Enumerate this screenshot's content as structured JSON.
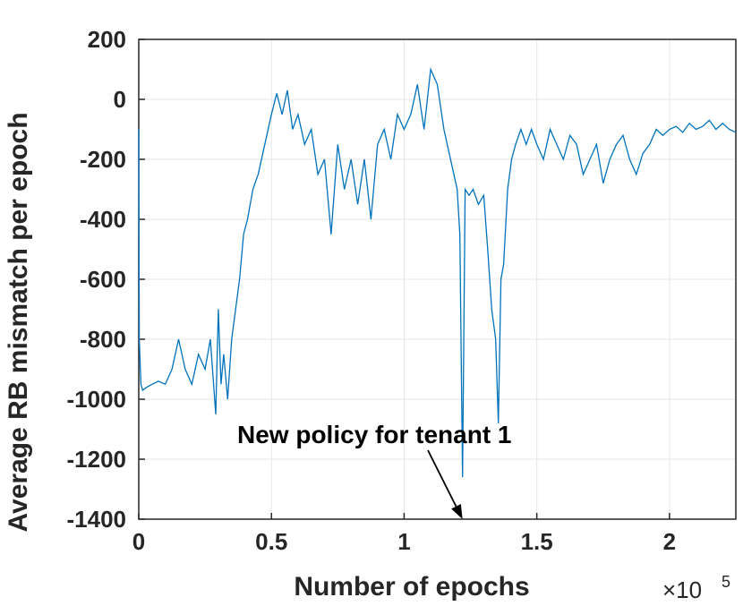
{
  "chart_data": {
    "type": "line",
    "xlabel": "Number of epochs",
    "ylabel": "Average RB mismatch per epoch",
    "xlim": [
      0,
      225000
    ],
    "ylim": [
      -1400,
      200
    ],
    "x_ticks": [
      0,
      50000,
      100000,
      150000,
      200000
    ],
    "x_tick_labels": [
      "0",
      "0.5",
      "1",
      "1.5",
      "2"
    ],
    "x_multiplier": {
      "base": "×10",
      "exponent": "5"
    },
    "y_ticks": [
      200,
      0,
      -200,
      -400,
      -600,
      -800,
      -1000,
      -1200,
      -1400
    ],
    "y_tick_labels": [
      "200",
      "0",
      "-200",
      "-400",
      "-600",
      "-800",
      "-1000",
      "-1200",
      "-1400"
    ],
    "grid": true,
    "line_color": "#0072BD",
    "annotation": {
      "text": "New policy for tenant 1",
      "arrow_to": {
        "x": 122000,
        "y": -1400
      }
    },
    "series": [
      {
        "x": [
          0,
          200,
          800,
          1500,
          3000,
          5000,
          7500,
          10000,
          12500,
          15000,
          17500,
          20000,
          22500,
          25000,
          27000,
          29000,
          30000,
          31000,
          32000,
          33500,
          35000,
          36500,
          38000,
          39500,
          41000,
          43000,
          45000,
          47500,
          50000,
          52000,
          54000,
          56000,
          58000,
          60000,
          62500,
          65000,
          67500,
          70000,
          72500,
          75000,
          77500,
          80000,
          82500,
          85000,
          87500,
          90000,
          92500,
          95000,
          97500,
          100000,
          102500,
          105000,
          107500,
          110000,
          112500,
          115000,
          117500,
          120000,
          121000,
          122000,
          123000,
          124500,
          126000,
          128000,
          130000,
          131500,
          133000,
          134500,
          135500,
          136500,
          137500,
          139000,
          140500,
          142000,
          144000,
          146000,
          148000,
          150000,
          152500,
          155000,
          157500,
          160000,
          162500,
          165000,
          167500,
          170000,
          172500,
          175000,
          177500,
          180000,
          182500,
          185000,
          187500,
          190000,
          192500,
          195000,
          197500,
          200000,
          202500,
          205000,
          207500,
          210000,
          212500,
          215000,
          217500,
          220000,
          222500,
          225000
        ],
        "y": [
          -100,
          -800,
          -950,
          -970,
          -960,
          -950,
          -940,
          -950,
          -900,
          -800,
          -900,
          -950,
          -850,
          -900,
          -800,
          -1050,
          -700,
          -950,
          -850,
          -1000,
          -800,
          -700,
          -600,
          -450,
          -400,
          -300,
          -250,
          -150,
          -50,
          20,
          -50,
          30,
          -100,
          -50,
          -150,
          -100,
          -250,
          -200,
          -450,
          -150,
          -300,
          -200,
          -350,
          -200,
          -400,
          -150,
          -100,
          -200,
          -50,
          -100,
          -50,
          50,
          -100,
          100,
          50,
          -100,
          -200,
          -300,
          -450,
          -1260,
          -300,
          -320,
          -300,
          -350,
          -320,
          -500,
          -700,
          -800,
          -1080,
          -600,
          -550,
          -300,
          -200,
          -150,
          -100,
          -150,
          -100,
          -150,
          -200,
          -100,
          -150,
          -200,
          -120,
          -150,
          -250,
          -200,
          -150,
          -280,
          -200,
          -150,
          -120,
          -200,
          -250,
          -180,
          -150,
          -100,
          -120,
          -100,
          -90,
          -110,
          -80,
          -100,
          -90,
          -70,
          -100,
          -80,
          -100,
          -110
        ]
      }
    ]
  }
}
